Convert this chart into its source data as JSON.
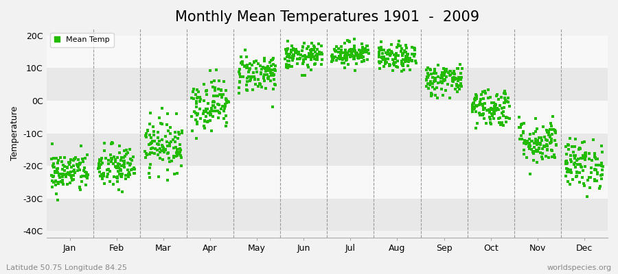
{
  "title": "Monthly Mean Temperatures 1901  -  2009",
  "ylabel": "Temperature",
  "xlabel_months": [
    "Jan",
    "Feb",
    "Mar",
    "Apr",
    "May",
    "Jun",
    "Jul",
    "Aug",
    "Sep",
    "Oct",
    "Nov",
    "Dec"
  ],
  "yticks": [
    -40,
    -30,
    -20,
    -10,
    0,
    10,
    20
  ],
  "ytick_labels": [
    "-40C",
    "-30C",
    "-20C",
    "-10C",
    "0C",
    "10C",
    "20C"
  ],
  "ylim": [
    -42,
    22
  ],
  "dot_color": "#22bb00",
  "dot_size": 6,
  "background_color": "#f2f2f2",
  "band_colors": [
    "#e8e8e8",
    "#f8f8f8"
  ],
  "title_fontsize": 15,
  "label_fontsize": 9,
  "footer_left": "Latitude 50.75 Longitude 84.25",
  "footer_right": "worldspecies.org",
  "monthly_means": [
    -22.0,
    -20.5,
    -13.5,
    -1.0,
    8.5,
    13.5,
    14.5,
    13.0,
    6.5,
    -2.0,
    -12.5,
    -19.5
  ],
  "monthly_stds": [
    3.2,
    3.5,
    4.0,
    4.0,
    3.0,
    2.0,
    1.8,
    2.0,
    2.5,
    3.0,
    3.5,
    3.8
  ],
  "n_years": 109,
  "seed": 42
}
